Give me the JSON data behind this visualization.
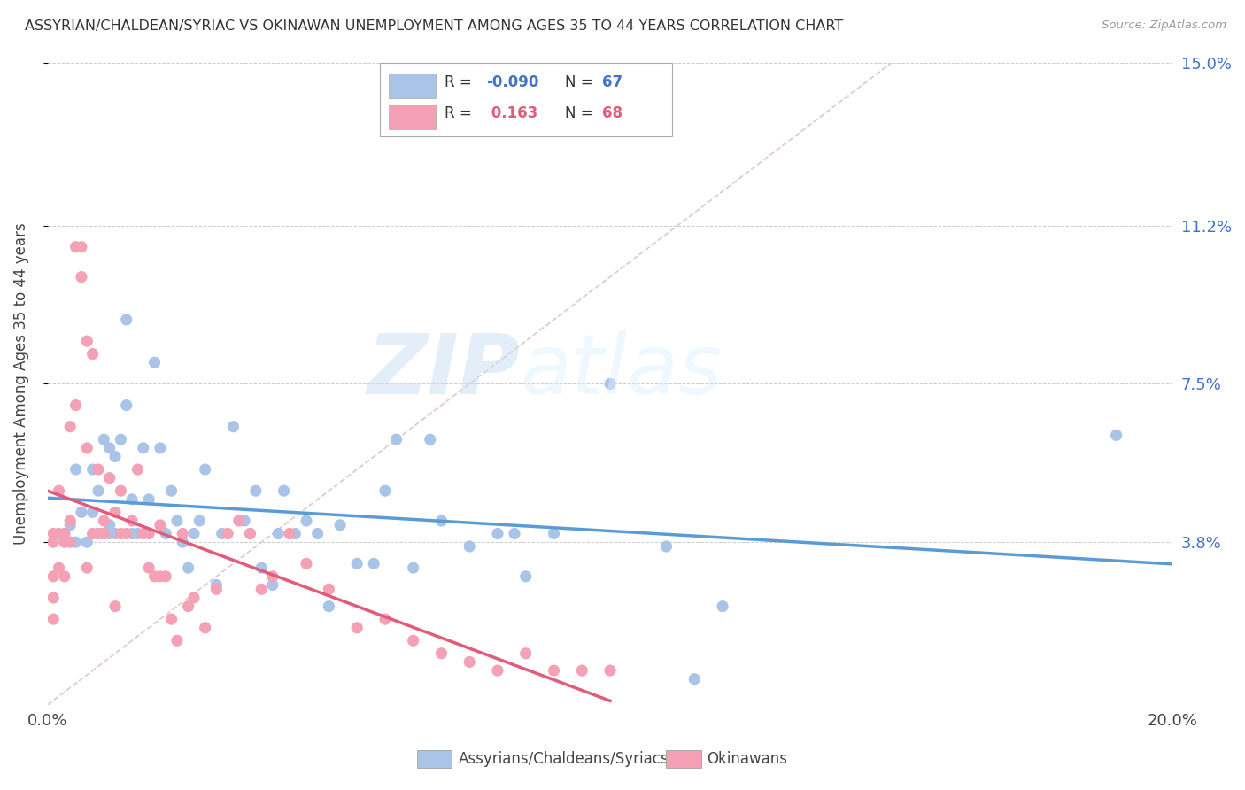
{
  "title": "ASSYRIAN/CHALDEAN/SYRIAC VS OKINAWAN UNEMPLOYMENT AMONG AGES 35 TO 44 YEARS CORRELATION CHART",
  "source": "Source: ZipAtlas.com",
  "ylabel": "Unemployment Among Ages 35 to 44 years",
  "xlim": [
    0,
    0.2
  ],
  "ylim": [
    0,
    0.15
  ],
  "xtick_positions": [
    0.0,
    0.04,
    0.08,
    0.12,
    0.16,
    0.2
  ],
  "xticklabels": [
    "0.0%",
    "",
    "",
    "",
    "",
    "20.0%"
  ],
  "ytick_positions": [
    0.038,
    0.075,
    0.112,
    0.15
  ],
  "ytick_labels": [
    "3.8%",
    "7.5%",
    "11.2%",
    "15.0%"
  ],
  "r_blue": -0.09,
  "n_blue": 67,
  "r_pink": 0.163,
  "n_pink": 68,
  "background_color": "#ffffff",
  "scatter_blue_color": "#aac4e8",
  "scatter_pink_color": "#f4a0b5",
  "line_blue_color": "#5b9bd5",
  "line_pink_color": "#e05c7a",
  "diag_line_color": "#e0c8c8",
  "legend_box_blue": "#aac4e8",
  "legend_box_pink": "#f4a0b5",
  "watermark_zip": "ZIP",
  "watermark_atlas": "atlas",
  "blue_scatter_x": [
    0.003,
    0.004,
    0.005,
    0.005,
    0.006,
    0.007,
    0.008,
    0.008,
    0.009,
    0.009,
    0.01,
    0.01,
    0.011,
    0.011,
    0.011,
    0.012,
    0.012,
    0.013,
    0.014,
    0.014,
    0.015,
    0.015,
    0.016,
    0.017,
    0.018,
    0.019,
    0.02,
    0.021,
    0.022,
    0.023,
    0.024,
    0.025,
    0.026,
    0.027,
    0.028,
    0.03,
    0.031,
    0.033,
    0.035,
    0.036,
    0.037,
    0.038,
    0.04,
    0.041,
    0.042,
    0.044,
    0.046,
    0.048,
    0.05,
    0.052,
    0.055,
    0.058,
    0.06,
    0.062,
    0.065,
    0.068,
    0.07,
    0.075,
    0.08,
    0.083,
    0.085,
    0.09,
    0.1,
    0.11,
    0.115,
    0.19,
    0.12
  ],
  "blue_scatter_y": [
    0.04,
    0.042,
    0.038,
    0.055,
    0.045,
    0.038,
    0.055,
    0.045,
    0.04,
    0.05,
    0.062,
    0.04,
    0.042,
    0.04,
    0.06,
    0.058,
    0.04,
    0.062,
    0.09,
    0.07,
    0.04,
    0.048,
    0.04,
    0.06,
    0.048,
    0.08,
    0.06,
    0.04,
    0.05,
    0.043,
    0.038,
    0.032,
    0.04,
    0.043,
    0.055,
    0.028,
    0.04,
    0.065,
    0.043,
    0.04,
    0.05,
    0.032,
    0.028,
    0.04,
    0.05,
    0.04,
    0.043,
    0.04,
    0.023,
    0.042,
    0.033,
    0.033,
    0.05,
    0.062,
    0.032,
    0.062,
    0.043,
    0.037,
    0.04,
    0.04,
    0.03,
    0.04,
    0.075,
    0.037,
    0.006,
    0.063,
    0.023
  ],
  "pink_scatter_x": [
    0.001,
    0.001,
    0.001,
    0.001,
    0.001,
    0.002,
    0.002,
    0.002,
    0.003,
    0.003,
    0.003,
    0.004,
    0.004,
    0.004,
    0.005,
    0.005,
    0.006,
    0.006,
    0.007,
    0.007,
    0.007,
    0.008,
    0.008,
    0.009,
    0.009,
    0.01,
    0.01,
    0.01,
    0.011,
    0.012,
    0.013,
    0.013,
    0.014,
    0.015,
    0.016,
    0.017,
    0.018,
    0.018,
    0.019,
    0.02,
    0.02,
    0.021,
    0.022,
    0.023,
    0.024,
    0.025,
    0.026,
    0.028,
    0.03,
    0.032,
    0.034,
    0.036,
    0.038,
    0.04,
    0.043,
    0.046,
    0.05,
    0.055,
    0.06,
    0.065,
    0.07,
    0.075,
    0.08,
    0.085,
    0.09,
    0.095,
    0.1,
    0.012
  ],
  "pink_scatter_y": [
    0.04,
    0.038,
    0.03,
    0.025,
    0.02,
    0.04,
    0.032,
    0.05,
    0.04,
    0.03,
    0.038,
    0.043,
    0.065,
    0.038,
    0.07,
    0.107,
    0.107,
    0.1,
    0.032,
    0.085,
    0.06,
    0.082,
    0.04,
    0.04,
    0.055,
    0.04,
    0.04,
    0.043,
    0.053,
    0.045,
    0.05,
    0.04,
    0.04,
    0.043,
    0.055,
    0.04,
    0.04,
    0.032,
    0.03,
    0.042,
    0.03,
    0.03,
    0.02,
    0.015,
    0.04,
    0.023,
    0.025,
    0.018,
    0.027,
    0.04,
    0.043,
    0.04,
    0.027,
    0.03,
    0.04,
    0.033,
    0.027,
    0.018,
    0.02,
    0.015,
    0.012,
    0.01,
    0.008,
    0.012,
    0.008,
    0.008,
    0.008,
    0.023
  ]
}
